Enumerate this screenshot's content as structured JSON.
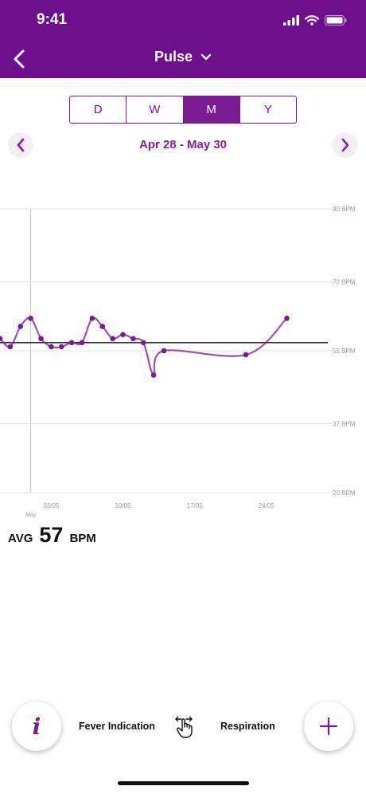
{
  "status_bar": {
    "time": "9:41"
  },
  "header": {
    "title": "Pulse"
  },
  "segments": [
    {
      "label": "D",
      "active": false
    },
    {
      "label": "W",
      "active": false
    },
    {
      "label": "M",
      "active": true
    },
    {
      "label": "Y",
      "active": false
    }
  ],
  "date_range": "Apr 28 - May 30",
  "chart_data": {
    "type": "line",
    "title": "",
    "xlabel": "",
    "ylabel": "",
    "y_tick_labels": [
      "90 BPM",
      "72 BPM",
      "55 BPM",
      "37 BPM",
      "20 BPM"
    ],
    "y_ticks": [
      90,
      72,
      55,
      37,
      20
    ],
    "ylim": [
      20,
      90
    ],
    "x_tick_labels": [
      "03/05",
      "10/05",
      "17/05",
      "24/05"
    ],
    "x_ticks": [
      "2023-05-03",
      "2023-05-10",
      "2023-05-17",
      "2023-05-24"
    ],
    "xlim": [
      "2023-04-28",
      "2023-05-30"
    ],
    "sublabel": "May",
    "marker_date": "2023-05-01",
    "average": 57,
    "grid": true,
    "legend": "none",
    "color": "#7a1b93",
    "series": [
      {
        "x": [
          "2023-04-28",
          "2023-04-29",
          "2023-04-30",
          "2023-05-01",
          "2023-05-02",
          "2023-05-03",
          "2023-05-04",
          "2023-05-05",
          "2023-05-06",
          "2023-05-07",
          "2023-05-08",
          "2023-05-09",
          "2023-05-10",
          "2023-05-11",
          "2023-05-12",
          "2023-05-13",
          "2023-05-14",
          "2023-05-22",
          "2023-05-26"
        ],
        "y": [
          58,
          56,
          61,
          63,
          58,
          56,
          56,
          57,
          57,
          63,
          61,
          58,
          59,
          58,
          57,
          49,
          55,
          54,
          63
        ]
      }
    ]
  },
  "avg": {
    "label": "AVG",
    "value": "57",
    "unit": "BPM"
  },
  "bottom_bar": {
    "info_label": "i",
    "left_link": "Fever Indication",
    "right_link": "Respiration"
  }
}
